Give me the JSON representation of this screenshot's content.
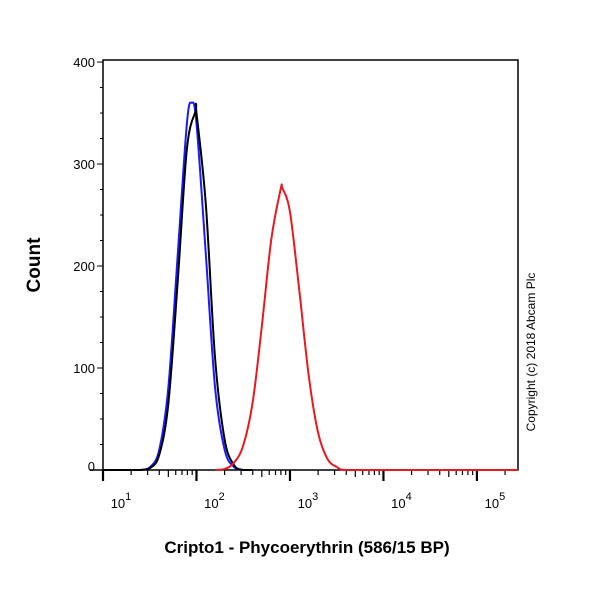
{
  "chart_data": {
    "type": "line",
    "title": "",
    "xlabel": "Cripto1 - Phycoerythrin (586/15 BP)",
    "ylabel": "Count",
    "x_scale": "log",
    "xlim": [
      10,
      275000
    ],
    "ylim": [
      0,
      402
    ],
    "x_ticks": [
      {
        "base": "10",
        "exp": "1",
        "value": 10
      },
      {
        "base": "10",
        "exp": "2",
        "value": 100
      },
      {
        "base": "10",
        "exp": "3",
        "value": 1000
      },
      {
        "base": "10",
        "exp": "4",
        "value": 10000
      },
      {
        "base": "10",
        "exp": "5",
        "value": 100000
      }
    ],
    "y_ticks": [
      0,
      100,
      200,
      300,
      400
    ],
    "grid": false,
    "legend": "none",
    "annotation": "Copyright (c) 2018 Abcam Plc",
    "series": [
      {
        "color": "#1a1aff",
        "x": [
          10,
          20,
          25,
          32,
          40,
          50,
          63,
          79,
          89,
          100,
          126,
          158,
          200,
          251,
          316,
          400
        ],
        "y": [
          0,
          0,
          0,
          3,
          20,
          81,
          211,
          340,
          360,
          340,
          211,
          81,
          20,
          3,
          0,
          0
        ]
      },
      {
        "color": "#000000",
        "x": [
          10,
          20,
          25,
          32,
          40,
          50,
          63,
          79,
          98,
          100,
          126,
          158,
          200,
          251,
          316,
          400
        ],
        "y": [
          0,
          0,
          0,
          2,
          15,
          65,
          185,
          315,
          352,
          350,
          260,
          110,
          30,
          5,
          0,
          0
        ]
      },
      {
        "color": "#e8191f",
        "x": [
          158,
          200,
          251,
          316,
          400,
          500,
          631,
          794,
          832,
          1000,
          1259,
          1585,
          1995,
          2512,
          3162,
          3981,
          10000,
          275000
        ],
        "y": [
          0,
          1,
          7,
          24,
          67,
          141,
          226,
          275,
          276,
          253,
          176,
          93,
          37,
          11,
          3,
          0,
          0,
          0
        ]
      }
    ]
  }
}
